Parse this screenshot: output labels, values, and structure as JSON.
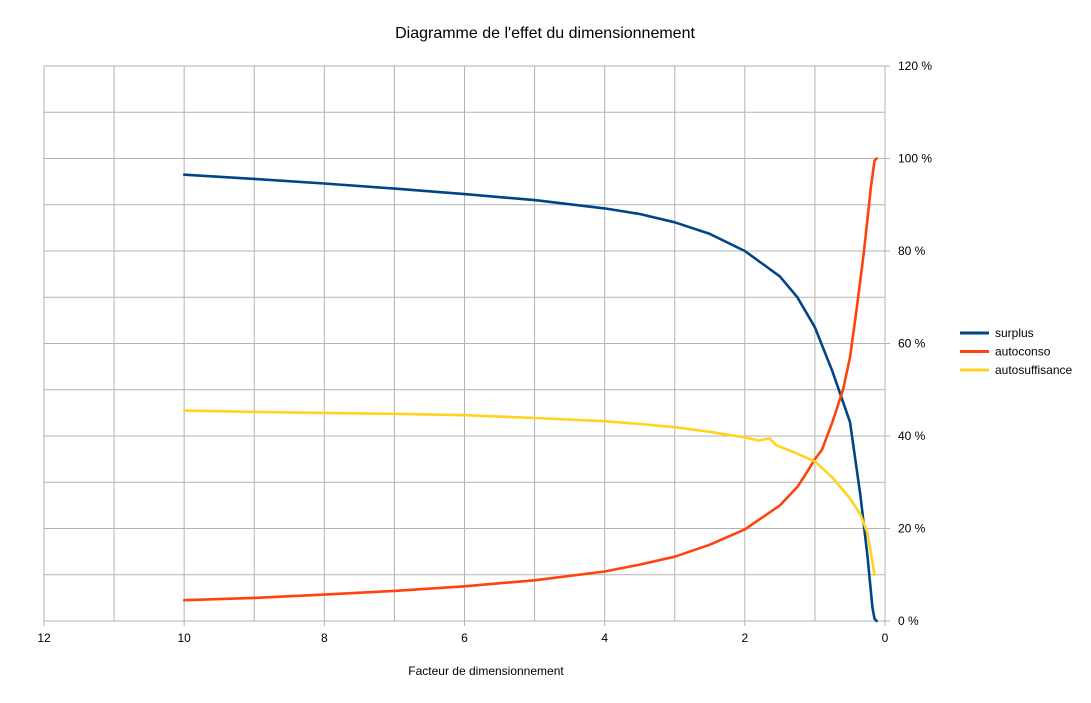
{
  "chart_data": {
    "type": "line",
    "title": "Diagramme de l'effet du dimensionnement",
    "xlabel": "Facteur de dimensionnement",
    "ylabel": "",
    "x_reversed": true,
    "xlim": [
      0,
      12
    ],
    "ylim": [
      0,
      120
    ],
    "x_ticks": [
      12,
      10,
      8,
      6,
      4,
      2,
      0
    ],
    "x_tick_labels": [
      "12",
      "10",
      "8",
      "6",
      "4",
      "2",
      "0"
    ],
    "y_ticks": [
      0,
      20,
      40,
      60,
      80,
      100,
      120
    ],
    "y_tick_labels": [
      "0 %",
      "20 %",
      "40 %",
      "60 %",
      "80 %",
      "100 %",
      "120 %"
    ],
    "y_axis_side": "right",
    "grid": true,
    "legend_position": "right",
    "series": [
      {
        "name": "surplus",
        "color": "#004586",
        "points": [
          [
            10,
            96.5
          ],
          [
            9,
            95.6
          ],
          [
            8,
            94.6
          ],
          [
            7,
            93.5
          ],
          [
            6,
            92.3
          ],
          [
            5,
            91.0
          ],
          [
            4,
            89.2
          ],
          [
            3.5,
            88.0
          ],
          [
            3,
            86.2
          ],
          [
            2.5,
            83.7
          ],
          [
            2,
            80.0
          ],
          [
            1.5,
            74.5
          ],
          [
            1.25,
            70.0
          ],
          [
            1,
            63.5
          ],
          [
            0.75,
            54.0
          ],
          [
            0.5,
            43.0
          ],
          [
            0.35,
            27.0
          ],
          [
            0.25,
            14.0
          ],
          [
            0.18,
            3.0
          ],
          [
            0.15,
            0.5
          ],
          [
            0.12,
            0.0
          ]
        ]
      },
      {
        "name": "autoconso",
        "color": "#ff420e",
        "points": [
          [
            10,
            4.5
          ],
          [
            9,
            5.0
          ],
          [
            8,
            5.7
          ],
          [
            7,
            6.5
          ],
          [
            6,
            7.5
          ],
          [
            5,
            8.8
          ],
          [
            4,
            10.7
          ],
          [
            3.5,
            12.2
          ],
          [
            3,
            13.9
          ],
          [
            2.5,
            16.5
          ],
          [
            2,
            19.8
          ],
          [
            1.5,
            25.0
          ],
          [
            1.25,
            29.0
          ],
          [
            1.1,
            32.5
          ],
          [
            1.0,
            35.0
          ],
          [
            0.9,
            37.0
          ],
          [
            0.75,
            43.0
          ],
          [
            0.6,
            50.0
          ],
          [
            0.5,
            57.0
          ],
          [
            0.4,
            68.0
          ],
          [
            0.3,
            80.0
          ],
          [
            0.2,
            94.0
          ],
          [
            0.15,
            99.5
          ],
          [
            0.12,
            100.0
          ]
        ]
      },
      {
        "name": "autosuffisance",
        "color": "#ffd320",
        "points": [
          [
            10,
            45.5
          ],
          [
            9,
            45.2
          ],
          [
            8,
            45.0
          ],
          [
            7,
            44.8
          ],
          [
            6,
            44.5
          ],
          [
            5,
            43.9
          ],
          [
            4,
            43.2
          ],
          [
            3.5,
            42.6
          ],
          [
            3,
            41.9
          ],
          [
            2.5,
            40.9
          ],
          [
            2,
            39.7
          ],
          [
            1.8,
            39.0
          ],
          [
            1.65,
            39.5
          ],
          [
            1.55,
            38.0
          ],
          [
            1.3,
            36.5
          ],
          [
            1.0,
            34.5
          ],
          [
            0.75,
            31.0
          ],
          [
            0.5,
            26.5
          ],
          [
            0.35,
            23.0
          ],
          [
            0.25,
            19.0
          ],
          [
            0.15,
            10.0
          ]
        ]
      }
    ]
  }
}
